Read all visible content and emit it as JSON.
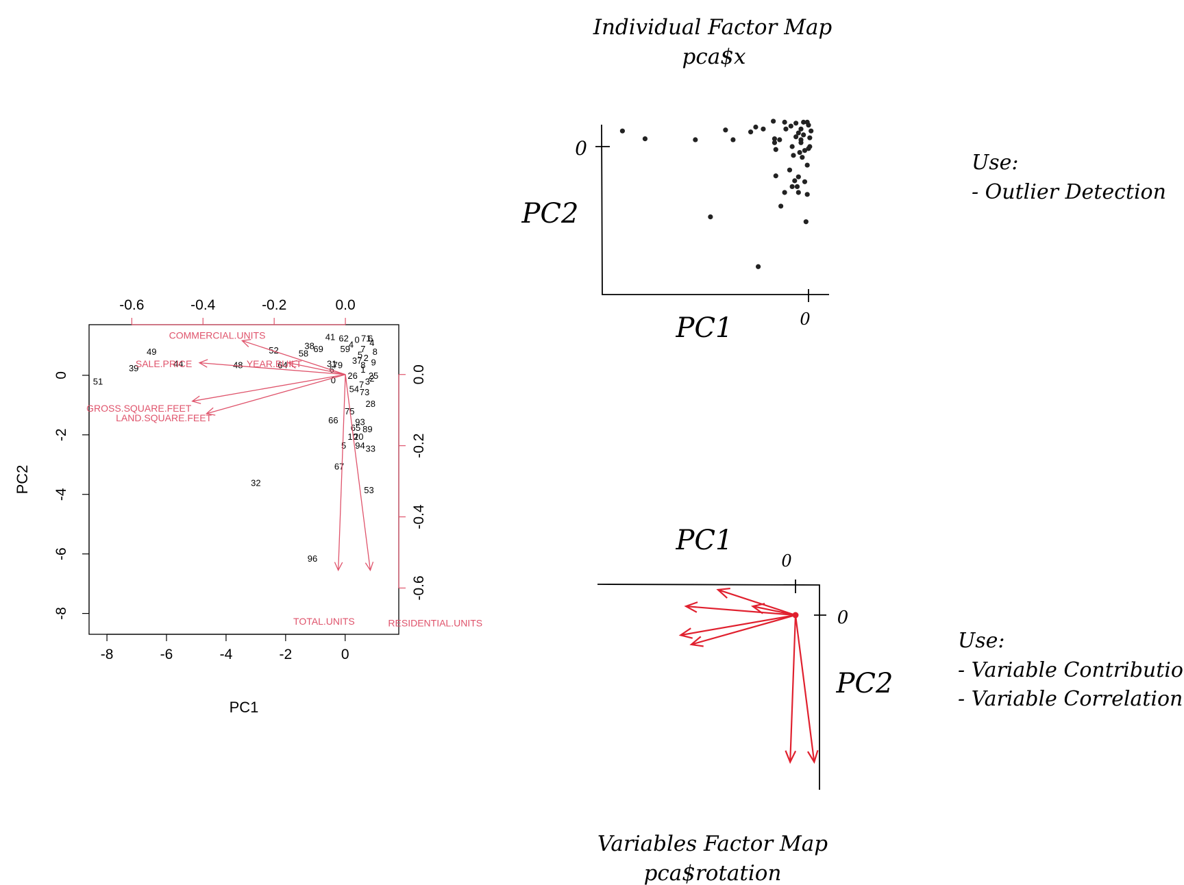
{
  "biplot": {
    "type": "scatter",
    "xlabel": "PC1",
    "ylabel": "PC2",
    "xlim": [
      -8.6,
      1.8
    ],
    "ylim": [
      -8.7,
      1.7
    ],
    "bottom_ticks": [
      "-8",
      "-6",
      "-4",
      "-2",
      "0"
    ],
    "bottom_tick_values": [
      -8,
      -6,
      -4,
      -2,
      0
    ],
    "left_ticks": [
      "-8",
      "-6",
      "-4",
      "-2",
      "0"
    ],
    "left_tick_values": [
      -8,
      -6,
      -4,
      -2,
      0
    ],
    "loading_xlim": [
      -0.72,
      0.15
    ],
    "loading_ylim": [
      -0.73,
      0.14
    ],
    "top_ticks": [
      "-0.6",
      "-0.4",
      "-0.2",
      "0.0"
    ],
    "top_tick_values": [
      -0.6,
      -0.4,
      -0.2,
      0.0
    ],
    "right_ticks": [
      "0.0",
      "-0.2",
      "-0.4",
      "-0.6"
    ],
    "right_tick_values": [
      0.0,
      -0.2,
      -0.4,
      -0.6
    ],
    "colors": {
      "points": "#000000",
      "arrows": "#df536b",
      "axes": "#000000"
    },
    "points": [
      {
        "label": "51",
        "x": -8.3,
        "y": -0.2
      },
      {
        "label": "39",
        "x": -7.1,
        "y": 0.25
      },
      {
        "label": "49",
        "x": -6.5,
        "y": 0.8
      },
      {
        "label": "44",
        "x": -5.6,
        "y": 0.4
      },
      {
        "label": "48",
        "x": -3.6,
        "y": 0.35
      },
      {
        "label": "52",
        "x": -2.4,
        "y": 0.85
      },
      {
        "label": "64",
        "x": -2.1,
        "y": 0.35
      },
      {
        "label": "58",
        "x": -1.4,
        "y": 0.75
      },
      {
        "label": "38",
        "x": -1.2,
        "y": 1.0
      },
      {
        "label": "69",
        "x": -0.9,
        "y": 0.9
      },
      {
        "label": "41",
        "x": -0.5,
        "y": 1.3
      },
      {
        "label": "62",
        "x": -0.05,
        "y": 1.25
      },
      {
        "label": "59",
        "x": 0.0,
        "y": 0.9
      },
      {
        "label": "31",
        "x": -0.45,
        "y": 0.4
      },
      {
        "label": "79",
        "x": -0.25,
        "y": 0.35
      },
      {
        "label": "6",
        "x": -0.45,
        "y": 0.2
      },
      {
        "label": "0",
        "x": -0.4,
        "y": -0.15
      },
      {
        "label": "71",
        "x": 0.7,
        "y": 1.25
      },
      {
        "label": "37",
        "x": 0.4,
        "y": 0.5
      },
      {
        "label": "26",
        "x": 0.25,
        "y": 0.0
      },
      {
        "label": "25",
        "x": 0.95,
        "y": 0.0
      },
      {
        "label": "54",
        "x": 0.3,
        "y": -0.45
      },
      {
        "label": "73",
        "x": 0.65,
        "y": -0.55
      },
      {
        "label": "28",
        "x": 0.85,
        "y": -0.95
      },
      {
        "label": "75",
        "x": 0.15,
        "y": -1.2
      },
      {
        "label": "66",
        "x": -0.4,
        "y": -1.5
      },
      {
        "label": "93",
        "x": 0.5,
        "y": -1.55
      },
      {
        "label": "65",
        "x": 0.35,
        "y": -1.75
      },
      {
        "label": "89",
        "x": 0.75,
        "y": -1.8
      },
      {
        "label": "10",
        "x": 0.25,
        "y": -2.05
      },
      {
        "label": "20",
        "x": 0.45,
        "y": -2.05
      },
      {
        "label": "5",
        "x": -0.05,
        "y": -2.35
      },
      {
        "label": "94",
        "x": 0.5,
        "y": -2.35
      },
      {
        "label": "33",
        "x": 0.85,
        "y": -2.45
      },
      {
        "label": "67",
        "x": -0.2,
        "y": -3.05
      },
      {
        "label": "32",
        "x": -3.0,
        "y": -3.6
      },
      {
        "label": "53",
        "x": 0.8,
        "y": -3.85
      },
      {
        "label": "96",
        "x": -1.1,
        "y": -6.15
      }
    ],
    "cluster_points": [
      {
        "label": "0",
        "x": 0.4,
        "y": 1.2
      },
      {
        "label": "4",
        "x": 0.9,
        "y": 1.1
      },
      {
        "label": "7",
        "x": 0.6,
        "y": 0.9
      },
      {
        "label": "8",
        "x": 1.0,
        "y": 0.8
      },
      {
        "label": "2",
        "x": 0.7,
        "y": 0.6
      },
      {
        "label": "9",
        "x": 0.95,
        "y": 0.45
      },
      {
        "label": "1",
        "x": 0.6,
        "y": 0.2
      },
      {
        "label": "3",
        "x": 0.75,
        "y": -0.2
      },
      {
        "label": "5",
        "x": 0.5,
        "y": 0.7
      },
      {
        "label": "6",
        "x": 0.85,
        "y": 1.25
      },
      {
        "label": "4",
        "x": 0.2,
        "y": 1.05
      },
      {
        "label": "8",
        "x": 0.6,
        "y": 0.35
      },
      {
        "label": "2",
        "x": 0.9,
        "y": -0.1
      },
      {
        "label": "7",
        "x": 0.55,
        "y": -0.3
      }
    ],
    "loadings": [
      {
        "name": "COMMERCIAL.UNITS",
        "x": -0.29,
        "y": 0.095,
        "lx": -0.36,
        "ly": 0.11,
        "align": "middle"
      },
      {
        "name": "SALE.PRICE",
        "x": -0.41,
        "y": 0.033,
        "lx": -0.51,
        "ly": 0.03,
        "align": "middle"
      },
      {
        "name": "YEAR.BUILT",
        "x": -0.16,
        "y": 0.033,
        "lx": -0.2,
        "ly": 0.03,
        "align": "middle"
      },
      {
        "name": "GROSS.SQUARE.FEET",
        "x": -0.43,
        "y": -0.075,
        "lx": -0.58,
        "ly": -0.095,
        "align": "middle"
      },
      {
        "name": "LAND.SQUARE.FEET",
        "x": -0.39,
        "y": -0.11,
        "lx": -0.51,
        "ly": -0.122,
        "align": "middle"
      },
      {
        "name": "TOTAL.UNITS",
        "x": -0.02,
        "y": -0.55,
        "lx": -0.06,
        "ly": -0.693,
        "align": "middle"
      },
      {
        "name": "RESIDENTIAL.UNITS",
        "x": 0.07,
        "y": -0.55,
        "lx": 0.12,
        "ly": -0.698,
        "align": "start"
      }
    ]
  },
  "individual_map": {
    "title_line1": "Individual Factor Map",
    "title_line2": "pca$x",
    "xlabel": "PC1",
    "ylabel": "PC2",
    "x_zero_label": "0",
    "y_zero_label": "0",
    "note_title": "Use:",
    "note_items": [
      "- Outlier Detection"
    ],
    "colors": {
      "points": "#222222",
      "axes": "#000000"
    }
  },
  "variables_map": {
    "title_line1": "Variables Factor Map",
    "title_line2": "pca$rotation",
    "xlabel": "PC1",
    "ylabel": "PC2",
    "x_zero_label": "0",
    "y_zero_label": "0",
    "note_title": "Use:",
    "note_items": [
      "- Variable Contribution",
      "- Variable Correlation"
    ],
    "colors": {
      "arrows": "#e0202e",
      "axes": "#000000"
    }
  }
}
